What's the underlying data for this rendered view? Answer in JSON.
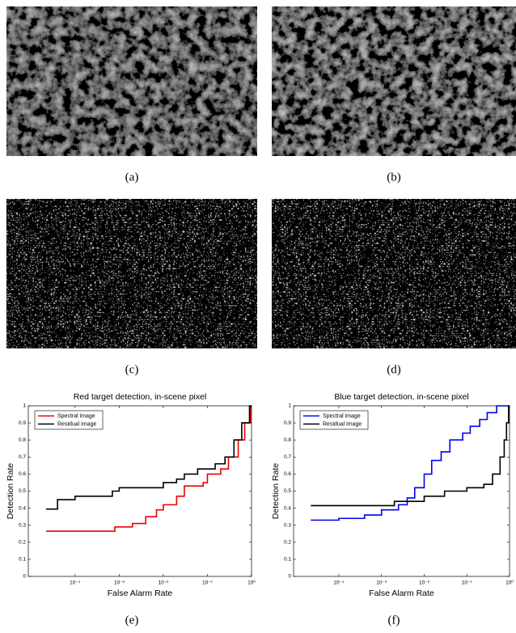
{
  "panels": {
    "labels": [
      "(a)",
      "(b)",
      "(c)",
      "(d)",
      "(e)",
      "(f)"
    ]
  },
  "chart_data": [
    {
      "type": "line",
      "title": "Red target detection, in-scene pixel",
      "xlabel": "False Alarm Rate",
      "ylabel": "Detection Rate",
      "xscale": "log",
      "xlim": [
        8.7e-06,
        1
      ],
      "ylim": [
        0,
        1
      ],
      "legend": "upper left",
      "xticks": [
        {
          "value": 0.0001,
          "label": "10⁻⁴"
        },
        {
          "value": 0.001,
          "label": "10⁻³"
        },
        {
          "value": 0.01,
          "label": "10⁻²"
        },
        {
          "value": 0.1,
          "label": "10⁻¹"
        },
        {
          "value": 1,
          "label": "10⁰"
        }
      ],
      "yticks": [
        0,
        0.1,
        0.2,
        0.3,
        0.4,
        0.5,
        0.6,
        0.7,
        0.8,
        0.9,
        1
      ],
      "series": [
        {
          "name": "Spectral image",
          "color": "#e8000b",
          "x": [
            2.2e-05,
            0.0008,
            0.0008,
            0.002,
            0.002,
            0.004,
            0.004,
            0.007,
            0.007,
            0.01,
            0.01,
            0.02,
            0.02,
            0.03,
            0.03,
            0.08,
            0.08,
            0.1,
            0.1,
            0.2,
            0.2,
            0.3,
            0.3,
            0.5,
            0.5,
            0.7,
            0.7,
            0.95,
            0.95,
            1
          ],
          "values": [
            0.265,
            0.265,
            0.29,
            0.29,
            0.31,
            0.31,
            0.35,
            0.35,
            0.39,
            0.39,
            0.42,
            0.42,
            0.47,
            0.47,
            0.53,
            0.53,
            0.55,
            0.55,
            0.6,
            0.6,
            0.63,
            0.63,
            0.7,
            0.7,
            0.8,
            0.8,
            0.9,
            0.9,
            1,
            1
          ]
        },
        {
          "name": "Residual image",
          "color": "#000000",
          "x": [
            2.2e-05,
            4e-05,
            4e-05,
            0.0001,
            0.0001,
            0.0007,
            0.0007,
            0.001,
            0.001,
            0.01,
            0.01,
            0.02,
            0.02,
            0.03,
            0.03,
            0.06,
            0.06,
            0.15,
            0.15,
            0.25,
            0.25,
            0.4,
            0.4,
            0.6,
            0.6,
            0.9,
            0.9,
            1
          ],
          "values": [
            0.395,
            0.395,
            0.45,
            0.45,
            0.47,
            0.47,
            0.5,
            0.5,
            0.52,
            0.52,
            0.55,
            0.55,
            0.57,
            0.57,
            0.6,
            0.6,
            0.63,
            0.63,
            0.66,
            0.66,
            0.7,
            0.7,
            0.8,
            0.8,
            0.9,
            0.9,
            1,
            1
          ]
        }
      ]
    },
    {
      "type": "line",
      "title": "Blue target detection, in-scene pixel",
      "xlabel": "False Alarm Rate",
      "ylabel": "Detection Rate",
      "xscale": "log",
      "xlim": [
        8.7e-06,
        1
      ],
      "ylim": [
        0,
        1
      ],
      "legend": "upper left",
      "xticks": [
        {
          "value": 0.0001,
          "label": "10⁻⁴"
        },
        {
          "value": 0.001,
          "label": "10⁻³"
        },
        {
          "value": 0.01,
          "label": "10⁻²"
        },
        {
          "value": 0.1,
          "label": "10⁻¹"
        },
        {
          "value": 1,
          "label": "10⁰"
        }
      ],
      "yticks": [
        0,
        0.1,
        0.2,
        0.3,
        0.4,
        0.5,
        0.6,
        0.7,
        0.8,
        0.9,
        1
      ],
      "series": [
        {
          "name": "Spectral image",
          "color": "#0000ee",
          "x": [
            2.2e-05,
            0.0001,
            0.0001,
            0.0004,
            0.0004,
            0.001,
            0.001,
            0.0025,
            0.0025,
            0.004,
            0.004,
            0.006,
            0.006,
            0.01,
            0.01,
            0.015,
            0.015,
            0.025,
            0.025,
            0.04,
            0.04,
            0.08,
            0.08,
            0.12,
            0.12,
            0.2,
            0.2,
            0.3,
            0.3,
            0.5,
            0.5,
            1
          ],
          "values": [
            0.33,
            0.33,
            0.34,
            0.34,
            0.36,
            0.36,
            0.39,
            0.39,
            0.42,
            0.42,
            0.46,
            0.46,
            0.52,
            0.52,
            0.6,
            0.6,
            0.68,
            0.68,
            0.73,
            0.73,
            0.8,
            0.8,
            0.84,
            0.84,
            0.88,
            0.88,
            0.92,
            0.92,
            0.96,
            0.96,
            1,
            1
          ]
        },
        {
          "name": "Residual image",
          "color": "#000000",
          "x": [
            2.2e-05,
            0.002,
            0.002,
            0.01,
            0.01,
            0.03,
            0.03,
            0.1,
            0.1,
            0.25,
            0.25,
            0.4,
            0.4,
            0.6,
            0.6,
            0.75,
            0.75,
            0.85,
            0.85,
            0.95,
            0.95,
            1
          ],
          "values": [
            0.415,
            0.415,
            0.44,
            0.44,
            0.47,
            0.47,
            0.5,
            0.5,
            0.52,
            0.52,
            0.54,
            0.54,
            0.6,
            0.6,
            0.7,
            0.7,
            0.8,
            0.8,
            0.9,
            0.9,
            1,
            1
          ]
        }
      ]
    }
  ]
}
